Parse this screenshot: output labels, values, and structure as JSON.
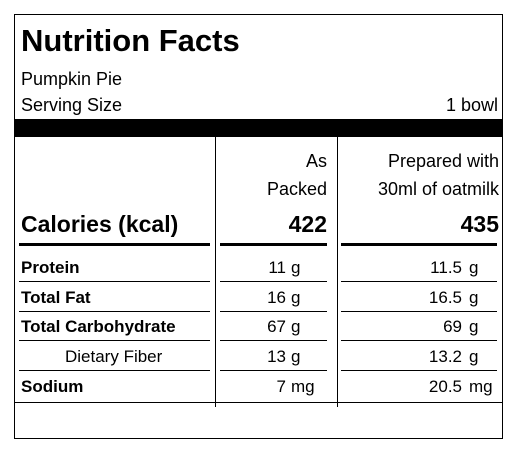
{
  "header": {
    "title": "Nutrition Facts",
    "product": "Pumpkin Pie",
    "serving_label": "Serving Size",
    "serving_value": "1 bowl"
  },
  "columns": {
    "packed_line1": "As",
    "packed_line2": "Packed",
    "prepared_line1": "Prepared with",
    "prepared_line2": "30ml of oatmilk"
  },
  "calories": {
    "label": "Calories (kcal)",
    "packed": "422",
    "prepared": "435"
  },
  "nutrients": [
    {
      "label": "Protein",
      "packed_value": "11",
      "packed_unit": "g",
      "prepared_value": "11.5",
      "prepared_unit": "g"
    },
    {
      "label": "Total Fat",
      "packed_value": "16",
      "packed_unit": "g",
      "prepared_value": "16.5",
      "prepared_unit": "g"
    },
    {
      "label": "Total Carbohydrate",
      "packed_value": "67",
      "packed_unit": "g",
      "prepared_value": "69",
      "prepared_unit": "g"
    },
    {
      "label": "Dietary Fiber",
      "packed_value": "13",
      "packed_unit": "g",
      "prepared_value": "13.2",
      "prepared_unit": "g"
    },
    {
      "label": "Sodium",
      "packed_value": "7",
      "packed_unit": "mg",
      "prepared_value": "20.5",
      "prepared_unit": "mg"
    }
  ]
}
